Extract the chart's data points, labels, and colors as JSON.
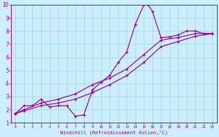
{
  "xlabel": "Windchill (Refroidissement éolien,°C)",
  "bg_color": "#cceeff",
  "grid_color": "#aadddd",
  "line_color": "#990099",
  "xlim": [
    -0.5,
    23.5
  ],
  "ylim": [
    1,
    10
  ],
  "xticks": [
    0,
    1,
    2,
    3,
    4,
    5,
    6,
    7,
    8,
    9,
    10,
    11,
    12,
    13,
    14,
    15,
    16,
    17,
    18,
    19,
    20,
    21,
    22,
    23
  ],
  "yticks": [
    1,
    2,
    3,
    4,
    5,
    6,
    7,
    8,
    9,
    10
  ],
  "curve1_x": [
    0,
    1,
    2,
    3,
    4,
    5,
    6,
    7,
    8,
    9,
    10,
    11,
    12,
    13,
    14,
    15,
    15.5,
    16,
    17,
    18,
    19,
    20,
    21,
    22,
    23
  ],
  "curve1_y": [
    1.7,
    2.3,
    2.3,
    2.8,
    2.2,
    2.3,
    2.3,
    1.5,
    1.6,
    3.5,
    4.1,
    4.6,
    5.6,
    6.4,
    8.5,
    10.0,
    10.0,
    9.5,
    7.5,
    7.55,
    7.7,
    8.0,
    8.0,
    7.8,
    7.8
  ],
  "curve2_x": [
    0,
    1,
    3,
    5,
    7,
    9,
    11,
    13,
    15,
    17,
    19,
    21,
    23
  ],
  "curve2_y": [
    1.7,
    2.0,
    2.5,
    2.8,
    3.2,
    3.9,
    4.4,
    5.1,
    6.2,
    7.3,
    7.5,
    7.8,
    7.8
  ],
  "curve3_x": [
    0,
    1,
    3,
    5,
    7,
    9,
    11,
    13,
    15,
    17,
    19,
    21,
    23
  ],
  "curve3_y": [
    1.7,
    1.9,
    2.3,
    2.5,
    2.8,
    3.3,
    3.9,
    4.6,
    5.6,
    6.8,
    7.2,
    7.6,
    7.8
  ]
}
